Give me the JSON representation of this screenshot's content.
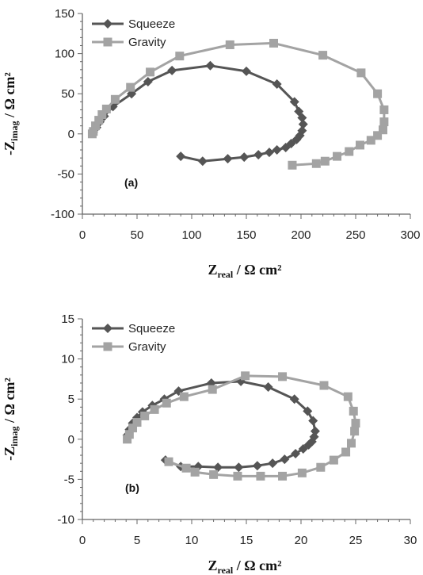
{
  "colors": {
    "squeeze": "#555555",
    "gravity": "#a3a3a3",
    "axis": "#666666"
  },
  "chart_data": [
    {
      "type": "scatter",
      "panel_label": "(a)",
      "xlabel": {
        "main": "Z",
        "sub": "real",
        "rest": " / Ω cm²"
      },
      "ylabel": {
        "prefix": "-Z",
        "sub": "imag",
        "rest": " / Ω cm²"
      },
      "xlim": [
        0,
        300
      ],
      "ylim": [
        -100,
        150
      ],
      "xticks": [
        "0",
        "50",
        "100",
        "150",
        "200",
        "250",
        "300"
      ],
      "yticks": [
        "-100",
        "-50",
        "0",
        "50",
        "100",
        "150"
      ],
      "legend_position": "top-left",
      "grid": false,
      "series": [
        {
          "name": "Squeeze",
          "marker": "diamond",
          "x": [
            10,
            13,
            16,
            20,
            28,
            45,
            60,
            82,
            117,
            150,
            178,
            194,
            198,
            201,
            202,
            201,
            199,
            196,
            191,
            186,
            178,
            171,
            161,
            148,
            133,
            110,
            90
          ],
          "y": [
            2,
            8,
            15,
            22,
            34,
            50,
            65,
            79,
            85,
            78,
            62,
            40,
            28,
            20,
            12,
            4,
            -2,
            -7,
            -12,
            -17,
            -20,
            -23,
            -26,
            -29,
            -31,
            -34,
            -28
          ]
        },
        {
          "name": "Gravity",
          "marker": "square",
          "x": [
            9,
            10,
            12,
            15,
            18,
            22,
            30,
            44,
            62,
            89,
            135,
            175,
            220,
            255,
            270,
            276,
            276,
            275,
            270,
            264,
            254,
            244,
            233,
            222,
            214,
            192
          ],
          "y": [
            0,
            3,
            10,
            17,
            24,
            31,
            43,
            58,
            77,
            97,
            111,
            113,
            98,
            76,
            50,
            30,
            15,
            5,
            -2,
            -8,
            -14,
            -22,
            -28,
            -34,
            -37,
            -39
          ]
        }
      ]
    },
    {
      "type": "scatter",
      "panel_label": "(b)",
      "xlabel": {
        "main": "Z",
        "sub": "real",
        "rest": " / Ω cm²"
      },
      "ylabel": {
        "prefix": "-Z",
        "sub": "imag",
        "rest": " / Ω cm²"
      },
      "xlim": [
        0,
        30
      ],
      "ylim": [
        -10,
        15
      ],
      "xticks": [
        "0",
        "5",
        "10",
        "15",
        "20",
        "25",
        "30"
      ],
      "yticks": [
        "-10",
        "-5",
        "0",
        "5",
        "10",
        "15"
      ],
      "legend_position": "top-left",
      "grid": false,
      "series": [
        {
          "name": "Squeeze",
          "marker": "diamond",
          "x": [
            4.1,
            4.3,
            4.6,
            5.0,
            5.5,
            6.4,
            7.5,
            8.8,
            11.8,
            14.5,
            17.0,
            19.4,
            20.6,
            21.1,
            21.3,
            21.2,
            21.0,
            20.7,
            20.2,
            19.5,
            18.5,
            17.4,
            16.0,
            14.3,
            12.4,
            10.6,
            9.0,
            7.6
          ],
          "y": [
            0.5,
            1.2,
            2.0,
            2.7,
            3.4,
            4.2,
            5.0,
            6.0,
            7.0,
            7.2,
            6.5,
            5.0,
            3.5,
            2.3,
            1.0,
            0.3,
            -0.3,
            -0.7,
            -1.2,
            -1.8,
            -2.5,
            -3.0,
            -3.3,
            -3.5,
            -3.5,
            -3.4,
            -3.4,
            -2.6
          ]
        },
        {
          "name": "Gravity",
          "marker": "square",
          "x": [
            4.1,
            4.3,
            4.6,
            5.0,
            5.7,
            6.6,
            7.7,
            9.3,
            11.9,
            14.9,
            18.3,
            22.1,
            24.3,
            24.8,
            25.0,
            24.9,
            24.6,
            24.1,
            23.0,
            21.8,
            20.1,
            18.3,
            16.3,
            14.2,
            12.0,
            10.3,
            9.5,
            7.9
          ],
          "y": [
            0.0,
            0.6,
            1.4,
            2.1,
            2.9,
            3.7,
            4.5,
            5.3,
            6.2,
            7.9,
            7.8,
            6.7,
            5.3,
            3.5,
            2.0,
            1.0,
            -0.5,
            -1.6,
            -2.6,
            -3.5,
            -4.2,
            -4.6,
            -4.6,
            -4.6,
            -4.4,
            -4.1,
            -3.6,
            -2.8
          ]
        }
      ]
    }
  ]
}
